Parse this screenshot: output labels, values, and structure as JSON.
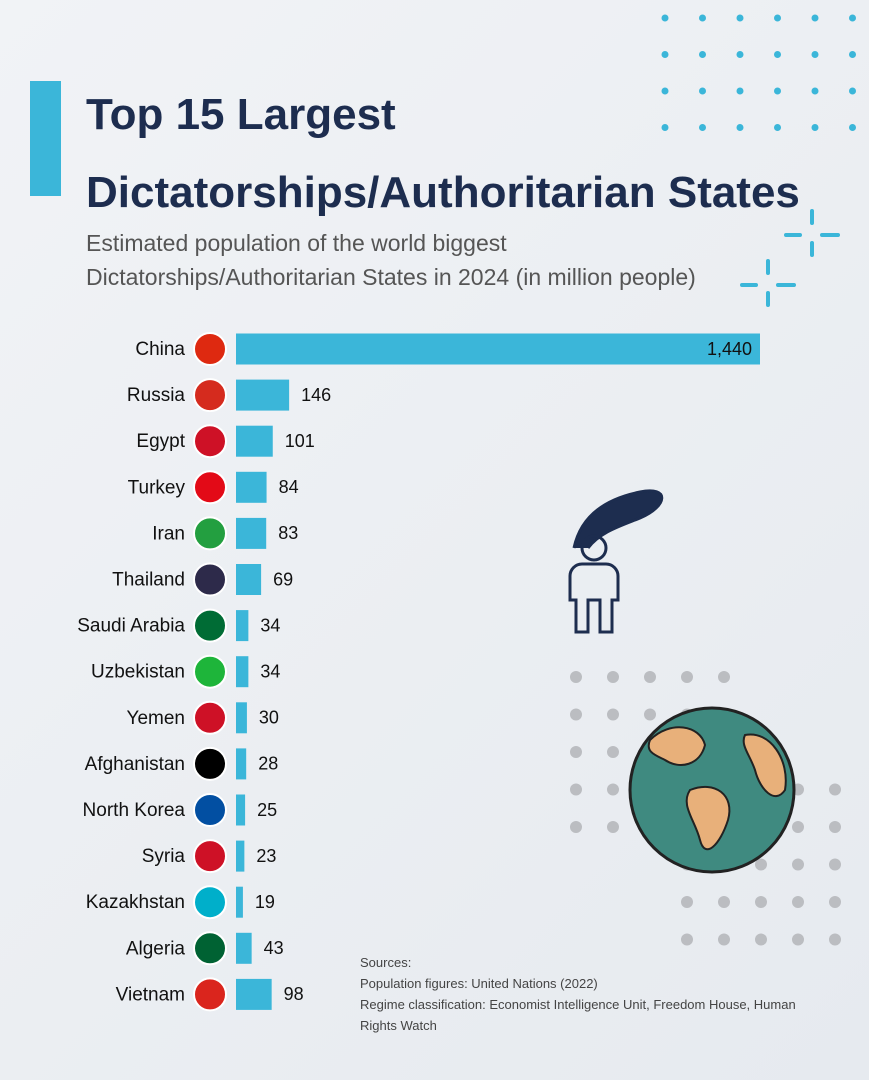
{
  "chart_data": {
    "type": "bar",
    "orientation": "horizontal",
    "title": "Top 15 Largest Dictatorships/Authoritarian States",
    "subtitle": "Estimated population of the world biggest Dictatorships/Authoritarian States in 2024 (in million people)",
    "categories": [
      "China",
      "Russia",
      "Egypt",
      "Turkey",
      "Iran",
      "Thailand",
      "Saudi Arabia",
      "Uzbekistan",
      "Yemen",
      "Afghanistan",
      "North Korea",
      "Syria",
      "Kazakhstan",
      "Algeria",
      "Vietnam"
    ],
    "values": [
      1440,
      146,
      101,
      84,
      83,
      69,
      34,
      34,
      30,
      28,
      25,
      23,
      19,
      43,
      98
    ],
    "value_labels": [
      "1,440",
      "146",
      "101",
      "84",
      "83",
      "69",
      "34",
      "34",
      "30",
      "28",
      "25",
      "23",
      "19",
      "43",
      "98"
    ],
    "color": "#3bb6d9",
    "annotations": [
      "Sources:",
      "Population figures: United Nations (2022)",
      "Regime classification: Economist Intelligence Unit, Freedom House, Human Rights Watch"
    ]
  }
}
